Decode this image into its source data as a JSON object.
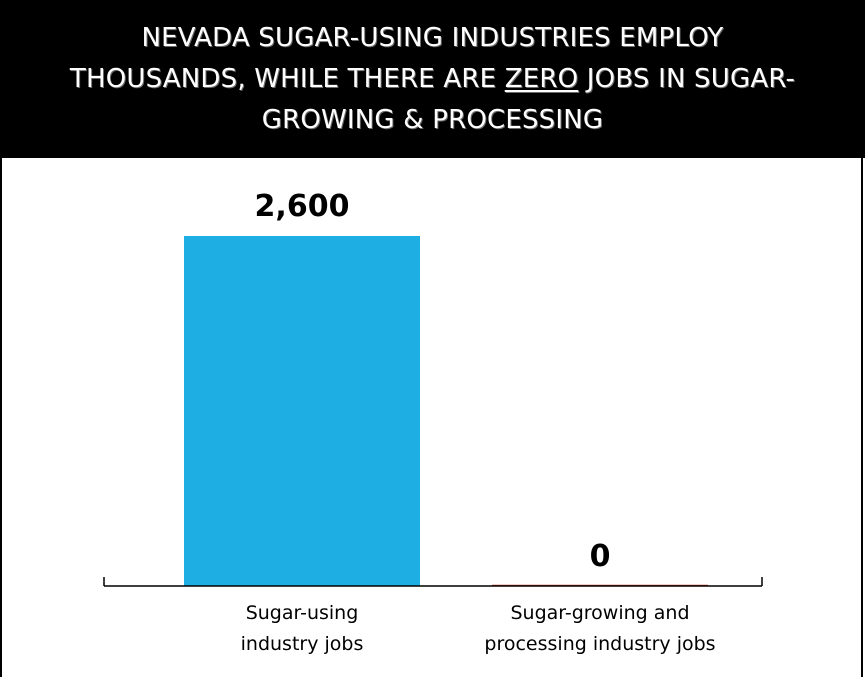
{
  "header": {
    "title_part1": "NEVADA SUGAR-USING INDUSTRIES EMPLOY THOUSANDS, WHILE THERE ARE ",
    "title_emphasis": "ZERO",
    "title_part2": " JOBS IN SUGAR-GROWING & PROCESSING"
  },
  "colors": {
    "bar_primary": "#1eaee4",
    "bar_zero": "#c0392b",
    "axis": "#000000"
  },
  "chart_data": {
    "type": "bar",
    "categories": [
      "Sugar-using industry jobs",
      "Sugar-growing and processing industry jobs"
    ],
    "category_lines": [
      [
        "Sugar-using",
        "industry jobs"
      ],
      [
        "Sugar-growing and",
        "processing industry jobs"
      ]
    ],
    "values": [
      2600,
      0
    ],
    "value_labels": [
      "2,600",
      "0"
    ],
    "ylim": [
      0,
      2600
    ],
    "grid": false,
    "legend": "none"
  }
}
